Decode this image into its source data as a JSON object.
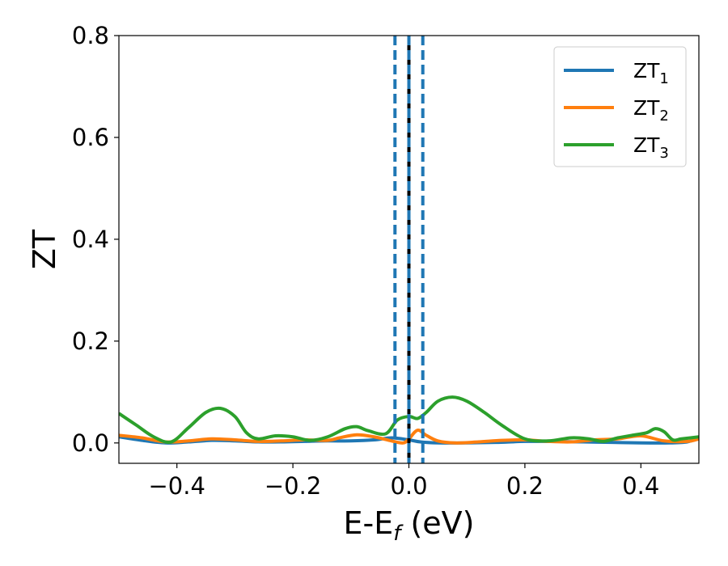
{
  "chart_data": {
    "type": "line",
    "xlabel": {
      "main": "E-E",
      "sub": "f",
      "rest": " (eV)"
    },
    "ylabel": "ZT",
    "xlim": [
      -0.5,
      0.5
    ],
    "ylim": [
      -0.04,
      0.8
    ],
    "xticks": [
      -0.4,
      -0.2,
      0.0,
      0.2,
      0.4
    ],
    "xtick_labels": [
      "−0.4",
      "−0.2",
      "0.0",
      "0.2",
      "0.4"
    ],
    "yticks": [
      0.0,
      0.2,
      0.4,
      0.6,
      0.8
    ],
    "ytick_labels": [
      "0.0",
      "0.2",
      "0.4",
      "0.6",
      "0.8"
    ],
    "grid": false,
    "legend_position": "top-right",
    "vlines": [
      {
        "x": 0.0,
        "color": "#000000",
        "style": "solid"
      },
      {
        "x": 0.0,
        "color": "#1f77b4",
        "style": "dashed"
      },
      {
        "x": -0.024,
        "color": "#1f77b4",
        "style": "dashed"
      },
      {
        "x": 0.024,
        "color": "#1f77b4",
        "style": "dashed"
      }
    ],
    "series": [
      {
        "name": "ZT",
        "name_sub": "1",
        "color": "#1f77b4",
        "x": [
          -0.5,
          -0.46,
          -0.42,
          -0.38,
          -0.34,
          -0.3,
          -0.26,
          -0.22,
          -0.18,
          -0.14,
          -0.1,
          -0.06,
          -0.03,
          0.0,
          0.02,
          0.05,
          0.1,
          0.15,
          0.2,
          0.25,
          0.3,
          0.35,
          0.4,
          0.45,
          0.48,
          0.5
        ],
        "y": [
          0.012,
          0.005,
          0.0,
          0.002,
          0.005,
          0.004,
          0.002,
          0.002,
          0.003,
          0.004,
          0.004,
          0.006,
          0.01,
          0.006,
          0.002,
          0.0,
          0.0,
          0.001,
          0.003,
          0.003,
          0.002,
          0.001,
          0.0,
          0.0,
          0.002,
          0.01
        ]
      },
      {
        "name": "ZT",
        "name_sub": "2",
        "color": "#ff7f0e",
        "x": [
          -0.5,
          -0.46,
          -0.42,
          -0.38,
          -0.34,
          -0.3,
          -0.26,
          -0.22,
          -0.18,
          -0.14,
          -0.12,
          -0.09,
          -0.06,
          -0.03,
          -0.01,
          0.0,
          0.015,
          0.03,
          0.05,
          0.08,
          0.12,
          0.16,
          0.2,
          0.24,
          0.28,
          0.32,
          0.36,
          0.4,
          0.44,
          0.48,
          0.5
        ],
        "y": [
          0.015,
          0.01,
          0.002,
          0.004,
          0.008,
          0.006,
          0.003,
          0.004,
          0.006,
          0.005,
          0.01,
          0.016,
          0.012,
          0.004,
          0.0,
          0.008,
          0.025,
          0.015,
          0.004,
          0.0,
          0.002,
          0.005,
          0.006,
          0.003,
          0.002,
          0.006,
          0.008,
          0.014,
          0.004,
          0.003,
          0.008
        ]
      },
      {
        "name": "ZT",
        "name_sub": "3",
        "color": "#2ca02c",
        "x": [
          -0.5,
          -0.47,
          -0.44,
          -0.41,
          -0.38,
          -0.35,
          -0.325,
          -0.3,
          -0.28,
          -0.26,
          -0.23,
          -0.2,
          -0.17,
          -0.14,
          -0.11,
          -0.09,
          -0.07,
          -0.04,
          -0.02,
          0.0,
          0.015,
          0.03,
          0.05,
          0.075,
          0.1,
          0.13,
          0.16,
          0.2,
          0.24,
          0.28,
          0.31,
          0.335,
          0.36,
          0.39,
          0.41,
          0.425,
          0.44,
          0.455,
          0.47,
          0.5
        ],
        "y": [
          0.058,
          0.035,
          0.012,
          0.002,
          0.03,
          0.06,
          0.068,
          0.052,
          0.02,
          0.008,
          0.014,
          0.012,
          0.005,
          0.012,
          0.028,
          0.032,
          0.024,
          0.018,
          0.045,
          0.052,
          0.048,
          0.06,
          0.082,
          0.09,
          0.082,
          0.06,
          0.035,
          0.008,
          0.004,
          0.01,
          0.008,
          0.003,
          0.01,
          0.016,
          0.02,
          0.028,
          0.022,
          0.006,
          0.008,
          0.012
        ]
      }
    ]
  }
}
